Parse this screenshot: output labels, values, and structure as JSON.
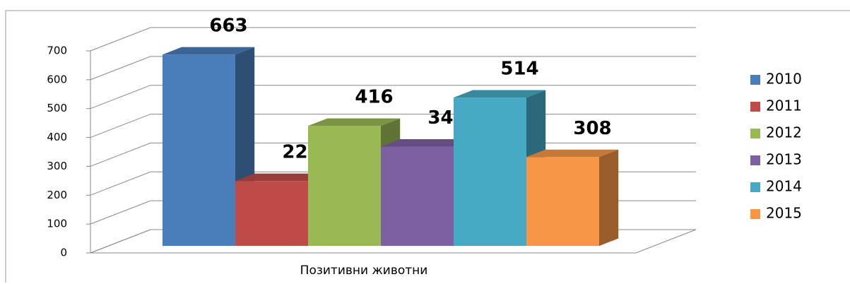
{
  "chart_data": {
    "type": "bar3d",
    "categories": [
      "Позитивни животни"
    ],
    "series": [
      {
        "name": "2010",
        "color": "#4a7ebb",
        "values": [
          663
        ]
      },
      {
        "name": "2011",
        "color": "#be4b48",
        "values": [
          225
        ]
      },
      {
        "name": "2012",
        "color": "#98b954",
        "values": [
          416
        ]
      },
      {
        "name": "2013",
        "color": "#7d60a0",
        "values": [
          344
        ]
      },
      {
        "name": "2014",
        "color": "#46aac5",
        "values": [
          514
        ]
      },
      {
        "name": "2015",
        "color": "#f79646",
        "values": [
          308
        ]
      }
    ],
    "ylim": [
      0,
      700
    ],
    "yticks": [
      0,
      100,
      200,
      300,
      400,
      500,
      600,
      700
    ],
    "grid": true,
    "legend": "right"
  }
}
